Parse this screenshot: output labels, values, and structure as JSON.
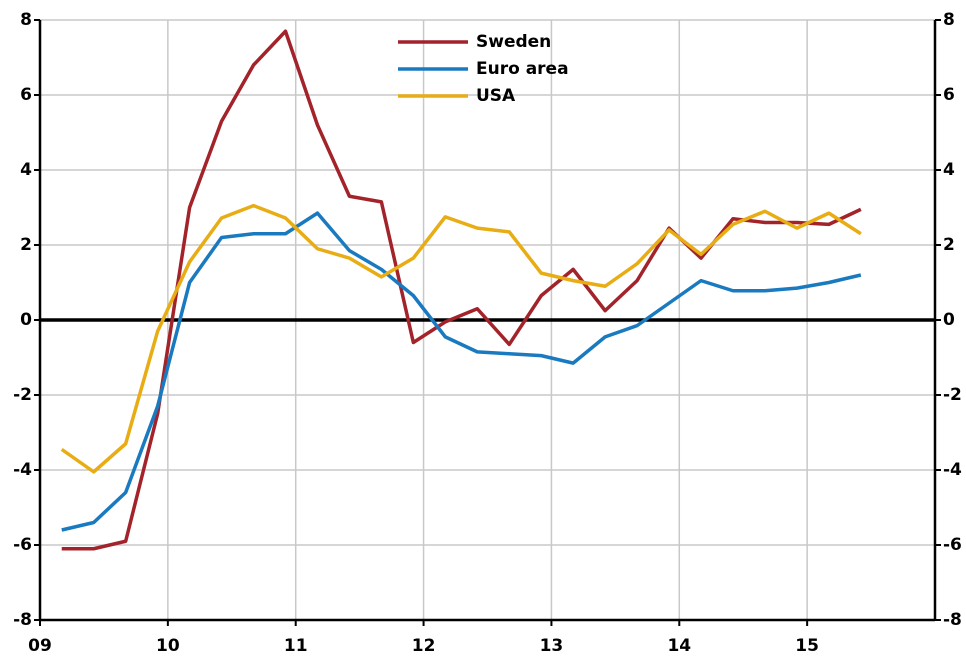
{
  "chart_data": {
    "type": "line",
    "x": [
      2009.17,
      2009.42,
      2009.67,
      2009.92,
      2010.17,
      2010.42,
      2010.67,
      2010.92,
      2011.17,
      2011.42,
      2011.67,
      2011.92,
      2012.17,
      2012.42,
      2012.67,
      2012.92,
      2013.17,
      2013.42,
      2013.67,
      2013.92,
      2014.17,
      2014.42,
      2014.67,
      2014.92,
      2015.17,
      2015.42
    ],
    "series": [
      {
        "name": "Sweden",
        "color": "#a3232b",
        "values": [
          -6.1,
          -6.1,
          -5.9,
          -2.5,
          3.0,
          5.3,
          6.8,
          7.7,
          5.2,
          3.3,
          3.15,
          -0.6,
          -0.05,
          0.3,
          -0.65,
          0.65,
          1.35,
          0.25,
          1.05,
          2.45,
          1.65,
          2.7,
          2.6,
          2.6,
          2.55,
          2.95
        ]
      },
      {
        "name": "Euro area",
        "color": "#1a7ac0",
        "values": [
          -5.6,
          -5.4,
          -4.6,
          -2.3,
          1.0,
          2.2,
          2.3,
          2.3,
          2.85,
          1.85,
          1.35,
          0.65,
          -0.45,
          -0.85,
          -0.9,
          -0.95,
          -1.15,
          -0.45,
          -0.15,
          0.45,
          1.05,
          0.78,
          0.78,
          0.85,
          1.0,
          1.2
        ]
      },
      {
        "name": "USA",
        "color": "#e8ad14",
        "values": [
          -3.45,
          -4.05,
          -3.3,
          -0.3,
          1.55,
          2.72,
          3.05,
          2.72,
          1.9,
          1.65,
          1.15,
          1.65,
          2.75,
          2.45,
          2.35,
          1.25,
          1.05,
          0.9,
          1.5,
          2.4,
          1.75,
          2.55,
          2.9,
          2.45,
          2.85,
          2.3
        ]
      }
    ],
    "xlim": [
      2009,
      2016
    ],
    "xticks": [
      {
        "value": 2009,
        "label": "09"
      },
      {
        "value": 2010,
        "label": "10"
      },
      {
        "value": 2011,
        "label": "11"
      },
      {
        "value": 2012,
        "label": "12"
      },
      {
        "value": 2013,
        "label": "13"
      },
      {
        "value": 2014,
        "label": "14"
      },
      {
        "value": 2015,
        "label": "15"
      }
    ],
    "ylim": [
      -8,
      8
    ],
    "yticks": [
      -8,
      -6,
      -4,
      -2,
      0,
      2,
      4,
      6,
      8
    ],
    "y2lim": [
      -8,
      8
    ],
    "y2ticks": [
      -8,
      -6,
      -4,
      -2,
      0,
      2,
      4,
      6,
      8
    ],
    "grid": true,
    "legend": "top"
  }
}
